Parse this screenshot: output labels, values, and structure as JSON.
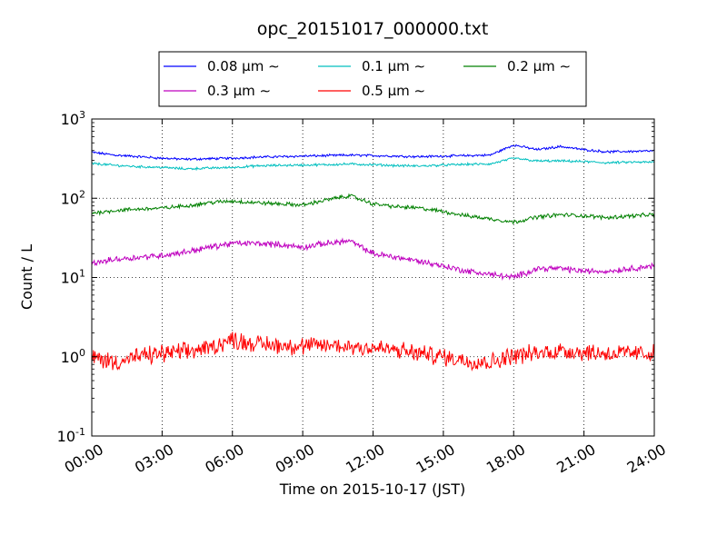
{
  "chart_data": {
    "type": "line",
    "title": "opc_20151017_000000.txt",
    "xlabel": "Time on 2015-10-17 (JST)",
    "ylabel": "Count / L",
    "yscale": "log",
    "ylim": [
      0.1,
      1000
    ],
    "xlim": [
      "00:00",
      "24:00"
    ],
    "x_ticks": [
      "00:00",
      "03:00",
      "06:00",
      "09:00",
      "12:00",
      "15:00",
      "18:00",
      "21:00",
      "24:00"
    ],
    "y_ticks": [
      {
        "value": 0.1,
        "base": "10",
        "exp": "-1"
      },
      {
        "value": 1,
        "base": "10",
        "exp": "0"
      },
      {
        "value": 10,
        "base": "10",
        "exp": "1"
      },
      {
        "value": 100,
        "base": "10",
        "exp": "2"
      },
      {
        "value": 1000,
        "base": "10",
        "exp": "3"
      }
    ],
    "grid": true,
    "legend_position": "top-center",
    "x": [
      "00:00",
      "01:00",
      "02:00",
      "03:00",
      "04:00",
      "05:00",
      "06:00",
      "07:00",
      "08:00",
      "09:00",
      "10:00",
      "11:00",
      "12:00",
      "13:00",
      "14:00",
      "15:00",
      "16:00",
      "17:00",
      "18:00",
      "19:00",
      "20:00",
      "21:00",
      "22:00",
      "23:00",
      "24:00"
    ],
    "series": [
      {
        "name": "0.08 μm ∼",
        "color": "#0000ff",
        "noise": 0.012,
        "values": [
          380,
          350,
          335,
          320,
          310,
          315,
          320,
          330,
          335,
          340,
          345,
          350,
          345,
          340,
          335,
          340,
          345,
          350,
          470,
          410,
          450,
          410,
          385,
          390,
          395
        ]
      },
      {
        "name": "0.1 μm ∼",
        "color": "#00bfbf",
        "noise": 0.012,
        "values": [
          275,
          260,
          250,
          245,
          235,
          240,
          245,
          255,
          260,
          262,
          265,
          270,
          265,
          258,
          255,
          262,
          268,
          270,
          320,
          295,
          295,
          290,
          280,
          285,
          285
        ]
      },
      {
        "name": "0.2 μm ∼",
        "color": "#008000",
        "noise": 0.02,
        "values": [
          65,
          70,
          73,
          75,
          80,
          88,
          92,
          88,
          85,
          82,
          95,
          108,
          85,
          78,
          75,
          68,
          60,
          55,
          50,
          58,
          62,
          60,
          57,
          60,
          62
        ]
      },
      {
        "name": "0.3 μm ∼",
        "color": "#bf00bf",
        "noise": 0.03,
        "values": [
          15,
          17,
          18,
          19,
          21,
          24,
          27,
          27,
          26,
          24,
          27,
          29,
          20,
          18,
          16,
          14,
          12,
          11,
          10,
          13,
          13,
          12,
          12,
          13,
          14
        ]
      },
      {
        "name": "0.5 μm ∼",
        "color": "#ff0000",
        "noise": 0.09,
        "values": [
          1.0,
          0.85,
          1.0,
          1.1,
          1.15,
          1.3,
          1.65,
          1.45,
          1.4,
          1.35,
          1.4,
          1.35,
          1.3,
          1.2,
          1.1,
          1.0,
          0.9,
          0.85,
          1.05,
          1.1,
          1.2,
          1.15,
          1.1,
          1.1,
          1.1
        ]
      }
    ]
  }
}
